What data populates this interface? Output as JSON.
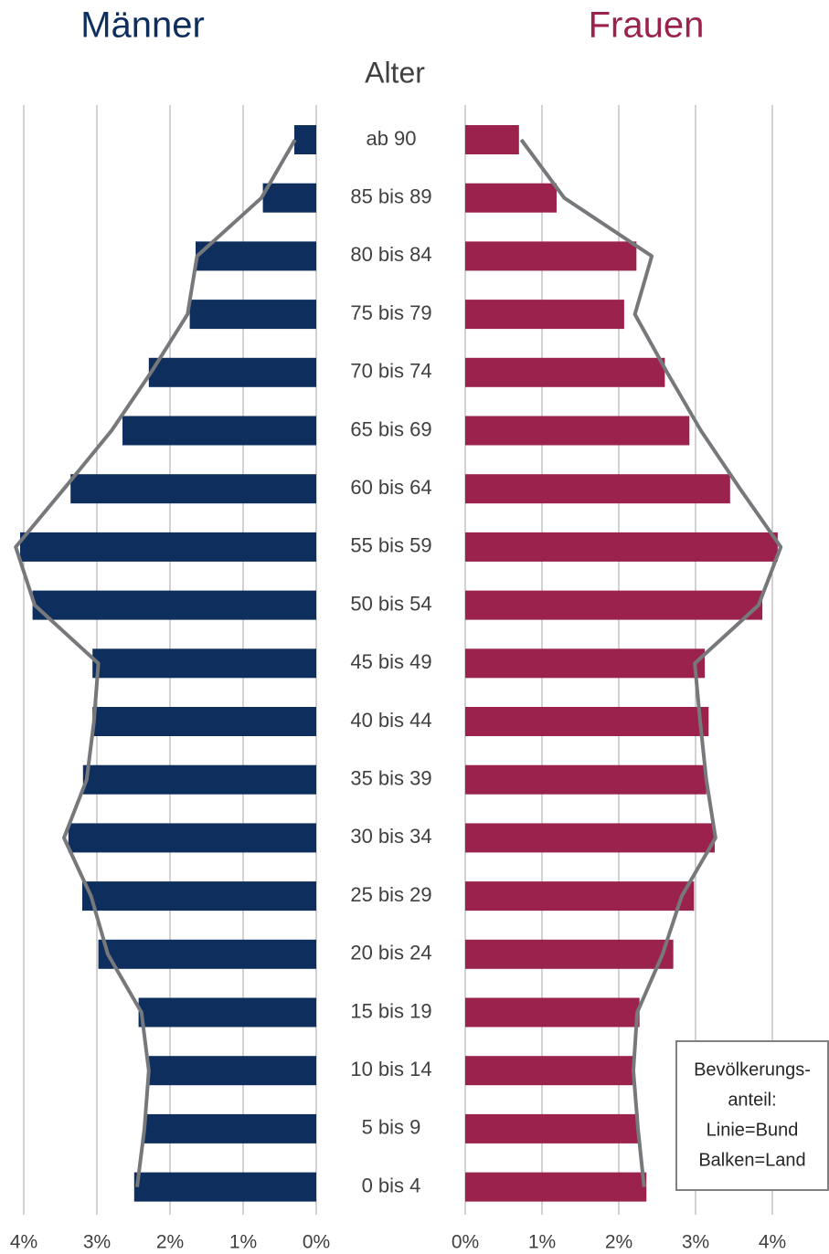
{
  "chart_data": {
    "type": "pyramid",
    "y_label": "Alter",
    "categories": [
      "ab 90",
      "85 bis 89",
      "80 bis 84",
      "75 bis 79",
      "70 bis 74",
      "65 bis 69",
      "60 bis 64",
      "55 bis 59",
      "50 bis 54",
      "45 bis 49",
      "40 bis 44",
      "35 bis 39",
      "30 bis 34",
      "25 bis 29",
      "20 bis 24",
      "15 bis 19",
      "10 bis 14",
      "5 bis 9",
      "0 bis 4"
    ],
    "series": [
      {
        "name": "Männer",
        "color": "#0e2f5e",
        "side": "left",
        "values": [
          0.3,
          0.73,
          1.65,
          1.73,
          2.29,
          2.65,
          3.36,
          4.05,
          3.88,
          3.06,
          3.06,
          3.19,
          3.39,
          3.2,
          2.98,
          2.43,
          2.29,
          2.35,
          2.49
        ],
        "reference_values": [
          0.29,
          0.75,
          1.63,
          1.76,
          2.26,
          2.8,
          3.45,
          4.11,
          3.85,
          2.98,
          3.04,
          3.14,
          3.45,
          3.08,
          2.85,
          2.39,
          2.29,
          2.35,
          2.45
        ]
      },
      {
        "name": "Frauen",
        "color": "#9b224c",
        "side": "right",
        "values": [
          0.7,
          1.19,
          2.23,
          2.07,
          2.6,
          2.92,
          3.45,
          4.07,
          3.87,
          3.12,
          3.17,
          3.14,
          3.25,
          2.98,
          2.71,
          2.27,
          2.18,
          2.26,
          2.36
        ],
        "reference_values": [
          0.73,
          1.29,
          2.43,
          2.21,
          2.63,
          3.07,
          3.58,
          4.11,
          3.82,
          2.99,
          3.06,
          3.14,
          3.26,
          2.82,
          2.57,
          2.24,
          2.19,
          2.25,
          2.33
        ]
      }
    ],
    "reference_color": "#76787b",
    "xlim": [
      0,
      4
    ],
    "xticks": [
      {
        "value": 0,
        "label": "0%"
      },
      {
        "value": 1,
        "label": "1%"
      },
      {
        "value": 2,
        "label": "2%"
      },
      {
        "value": 3,
        "label": "3%"
      },
      {
        "value": 4,
        "label": "4%"
      }
    ],
    "grid": true,
    "legend": {
      "position": "lower right",
      "lines": [
        "Bevölkerungs-",
        "anteil:",
        "Linie=Bund",
        "Balken=Land"
      ]
    }
  }
}
